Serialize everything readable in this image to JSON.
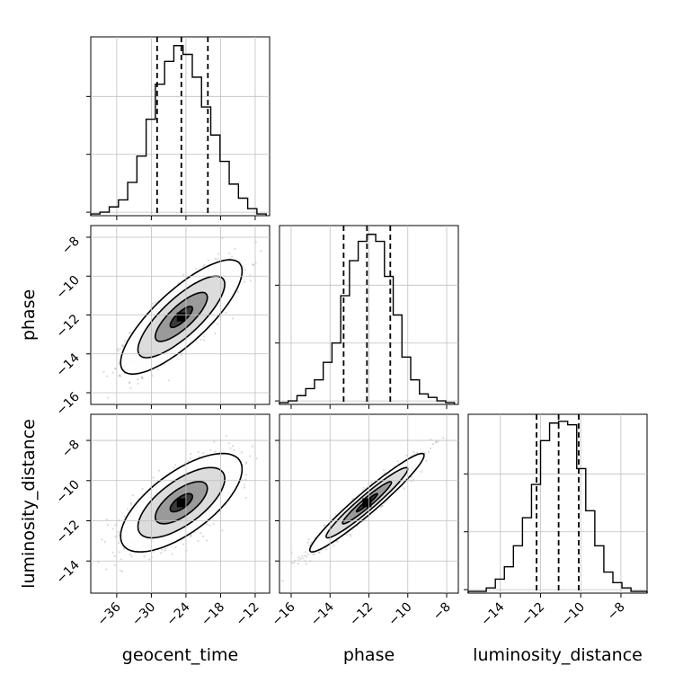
{
  "chart_data": {
    "type": "corner",
    "parameters": [
      "geocent_time",
      "phase",
      "luminosity_distance"
    ],
    "grid": true,
    "quantile_lines": "dashed",
    "marginals": [
      {
        "name": "geocent_time",
        "xlim": [
          -40.5,
          -9.5
        ],
        "ylim": [
          0,
          1.02
        ],
        "quantiles": [
          -29,
          -24.8,
          -20.2
        ],
        "bins": [
          -40.5,
          -38.9,
          -37.3,
          -35.7,
          -34.1,
          -32.5,
          -30.9,
          -29.3,
          -27.7,
          -26.1,
          -24.5,
          -22.9,
          -21.3,
          -19.7,
          -18.1,
          -16.5,
          -14.9,
          -13.3,
          -11.7,
          -10.1
        ],
        "counts": [
          0.01,
          0.02,
          0.05,
          0.09,
          0.19,
          0.34,
          0.55,
          0.75,
          0.88,
          0.97,
          0.92,
          0.79,
          0.62,
          0.46,
          0.31,
          0.18,
          0.1,
          0.04,
          0.01
        ]
      },
      {
        "name": "phase",
        "xlim": [
          -16.6,
          -7.4
        ],
        "ylim": [
          0,
          1.02
        ],
        "quantiles": [
          -13.3,
          -12.1,
          -10.9
        ],
        "bins": [
          -16.6,
          -16.15,
          -15.7,
          -15.25,
          -14.8,
          -14.35,
          -13.9,
          -13.45,
          -13.0,
          -12.55,
          -12.1,
          -11.65,
          -11.2,
          -10.75,
          -10.3,
          -9.85,
          -9.4,
          -8.95,
          -8.5,
          -8.05,
          -7.6
        ],
        "counts": [
          0.01,
          0.02,
          0.05,
          0.09,
          0.14,
          0.24,
          0.35,
          0.62,
          0.82,
          0.93,
          0.97,
          0.93,
          0.73,
          0.51,
          0.27,
          0.14,
          0.06,
          0.04,
          0.02,
          0.01
        ]
      },
      {
        "name": "luminosity_distance",
        "xlim": [
          -15.6,
          -6.7
        ],
        "ylim": [
          0,
          1.02
        ],
        "quantiles": [
          -12.2,
          -11.1,
          -10.1
        ],
        "bins": [
          -15.6,
          -15.15,
          -14.7,
          -14.25,
          -13.8,
          -13.35,
          -12.9,
          -12.45,
          -12.0,
          -11.55,
          -11.1,
          -10.65,
          -10.2,
          -9.75,
          -9.3,
          -8.85,
          -8.4,
          -7.95,
          -7.5,
          -7.05,
          -6.7
        ],
        "counts": [
          0.01,
          0.01,
          0.03,
          0.08,
          0.15,
          0.27,
          0.43,
          0.62,
          0.87,
          0.97,
          0.98,
          0.96,
          0.71,
          0.47,
          0.27,
          0.12,
          0.06,
          0.03,
          0.01,
          0.01
        ]
      }
    ],
    "joints": [
      {
        "x": "geocent_time",
        "y": "phase",
        "xlim": [
          -40.5,
          -9.5
        ],
        "ylim": [
          -16.6,
          -7.4
        ],
        "mean": [
          -24.8,
          -12.1
        ],
        "sd": [
          4.3,
          1.2
        ],
        "corr": 0.8
      },
      {
        "x": "geocent_time",
        "y": "luminosity_distance",
        "xlim": [
          -40.5,
          -9.5
        ],
        "ylim": [
          -15.6,
          -6.7
        ],
        "mean": [
          -24.8,
          -11.1
        ],
        "sd": [
          4.3,
          1.0
        ],
        "corr": 0.68
      },
      {
        "x": "phase",
        "y": "luminosity_distance",
        "xlim": [
          -16.6,
          -7.4
        ],
        "ylim": [
          -15.6,
          -6.7
        ],
        "mean": [
          -12.1,
          -11.1
        ],
        "sd": [
          1.2,
          1.0
        ],
        "corr": 0.96
      }
    ],
    "ticks": {
      "geocent_time": {
        "values": [
          -36,
          -30,
          -24,
          -18,
          -12
        ],
        "labels": [
          "−36",
          "−30",
          "−24",
          "−18",
          "−12"
        ]
      },
      "phase": {
        "values": [
          -16,
          -14,
          -12,
          -10,
          -8
        ],
        "labels": [
          "−16",
          "−14",
          "−12",
          "−10",
          "−8"
        ]
      },
      "luminosity_distance": {
        "values": [
          -14,
          -12,
          -10,
          -8
        ],
        "labels": [
          "−14",
          "−12",
          "−10",
          "−8"
        ]
      }
    },
    "axis_labels": {
      "x": [
        "geocent_time",
        "phase",
        "luminosity_distance"
      ],
      "y": [
        "phase",
        "luminosity_distance"
      ]
    }
  }
}
